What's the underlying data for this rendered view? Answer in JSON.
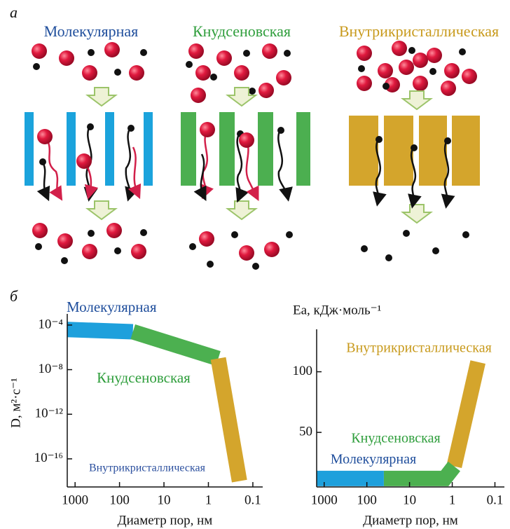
{
  "panel_a": {
    "label": "а",
    "titles": [
      "Молекулярная",
      "Кнудсеновская",
      "Внутрикристаллическая"
    ]
  },
  "panel_b": {
    "label": "б"
  },
  "chart_data": [
    {
      "type": "line",
      "ylabel": "D, м²·с⁻¹",
      "xlabel": "Диаметр пор, нм",
      "xscale": "log",
      "yscale": "log",
      "xlim": [
        1500,
        0.06
      ],
      "xticks": [
        1000,
        100,
        10,
        1,
        0.1
      ],
      "ylim": [
        3e-19,
        0.001
      ],
      "yticks": [
        {
          "value": 0.0001,
          "label": "10⁻⁴"
        },
        {
          "value": 1e-08,
          "label": "10⁻⁸"
        },
        {
          "value": 1e-12,
          "label": "10⁻¹²"
        },
        {
          "value": 1e-16,
          "label": "10⁻¹⁶"
        }
      ],
      "series": [
        {
          "name": "Молекулярная",
          "color": "#1ea0dc",
          "label_color": "#1f4e9c",
          "x": [
            1500,
            50
          ],
          "values": [
            4e-05,
            2.5e-05
          ]
        },
        {
          "name": "Кнудсеновская",
          "color": "#4cb050",
          "label_color": "#2f9e3c",
          "x": [
            50,
            0.6
          ],
          "values": [
            2.5e-05,
            1e-07
          ]
        },
        {
          "name": "Внутрикристаллическая",
          "color": "#d4a52c",
          "label_color": "#2b4f9e",
          "x": [
            0.6,
            0.2
          ],
          "values": [
            1e-07,
            1e-18
          ]
        }
      ]
    },
    {
      "type": "line",
      "ylabel": "Ea, кДж·моль⁻¹",
      "xlabel": "Диаметр пор, нм",
      "xscale": "log",
      "yscale": "linear",
      "xlim": [
        1500,
        0.06
      ],
      "xticks": [
        1000,
        100,
        10,
        1,
        0.1
      ],
      "ylim": [
        5,
        135
      ],
      "yticks": [
        50,
        100
      ],
      "series": [
        {
          "name": "Внутрикристаллическая",
          "color": "#d4a52c",
          "label_color": "#c89a1c",
          "x": [
            0.9,
            0.25
          ],
          "values": [
            22,
            108
          ]
        },
        {
          "name": "Кнудсеновская",
          "color": "#4cb050",
          "label_color": "#2f9e3c",
          "x": [
            40,
            1.5,
            0.9
          ],
          "values": [
            12,
            12,
            22
          ]
        },
        {
          "name": "Молекулярная",
          "color": "#1ea0dc",
          "label_color": "#1f4e9c",
          "x": [
            1500,
            40
          ],
          "values": [
            12,
            12
          ]
        }
      ]
    }
  ]
}
